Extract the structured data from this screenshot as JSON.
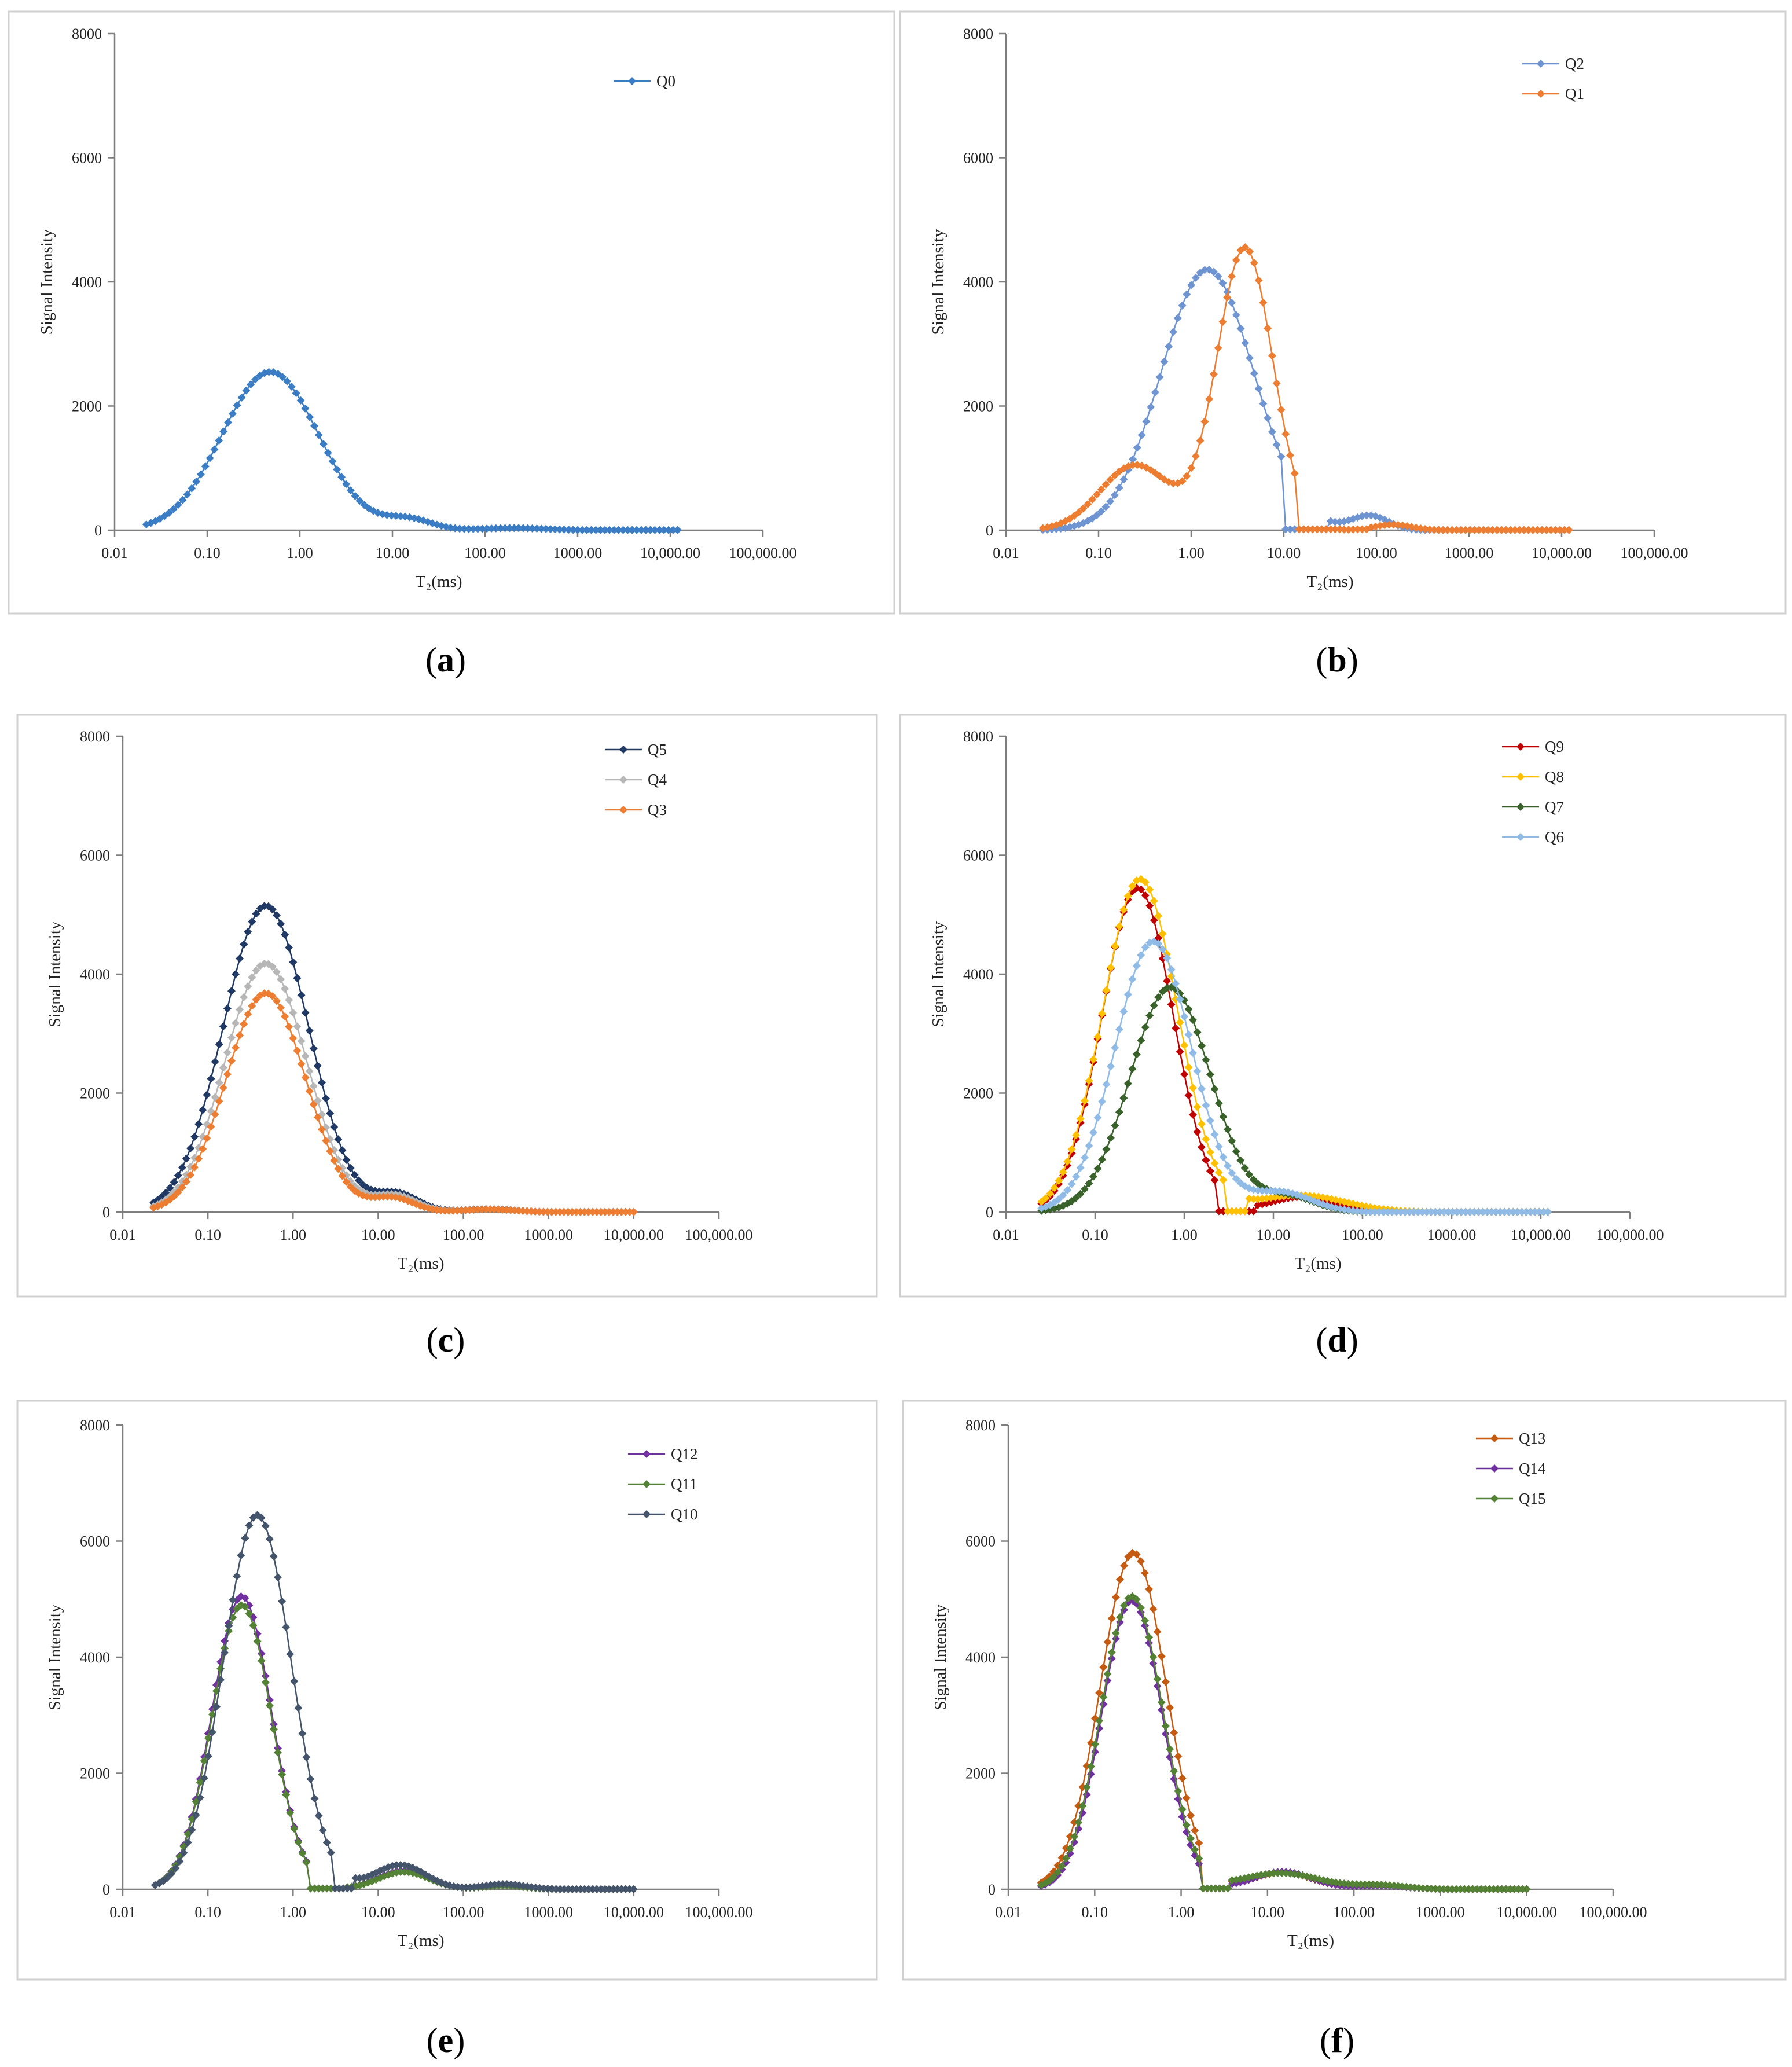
{
  "chart_data": [
    {
      "type": "line",
      "panel": "a",
      "caption_letter": "a",
      "title": "",
      "xlabel": "T₂(ms)",
      "ylabel": "Signal Intensity",
      "xscale": "log",
      "xlim": [
        0.01,
        100000
      ],
      "ylim": [
        0,
        8000
      ],
      "x_tick_labels": [
        "0.01",
        "0.10",
        "1.00",
        "10.00",
        "100.00",
        "1000.00",
        "10,000.00",
        "100,000.00"
      ],
      "y_tick_labels": [
        "0",
        "2000",
        "4000",
        "6000",
        "8000"
      ],
      "legend_position": "top-right",
      "series": [
        {
          "name": "Q0",
          "color": "#3b7dc4",
          "peaks": [
            {
              "mu": 0.48,
              "sd": 0.52,
              "amp": 2550
            },
            {
              "mu": 15,
              "sd": 0.25,
              "amp": 170
            },
            {
              "mu": 200,
              "sd": 0.35,
              "amp": 35
            }
          ],
          "x_range": [
            0.022,
            12000
          ]
        }
      ]
    },
    {
      "type": "line",
      "panel": "b",
      "caption_letter": "b",
      "title": "",
      "xlabel": "T₂(ms)",
      "ylabel": "Signal Intensity",
      "xscale": "log",
      "xlim": [
        0.01,
        100000
      ],
      "ylim": [
        0,
        8000
      ],
      "x_tick_labels": [
        "0.01",
        "0.10",
        "1.00",
        "10.00",
        "100.00",
        "1000.00",
        "10,000.00",
        "100,000.00"
      ],
      "y_tick_labels": [
        "0",
        "2000",
        "4000",
        "6000",
        "8000"
      ],
      "legend_position": "top-right",
      "series": [
        {
          "name": "Q2",
          "color": "#6f94d2",
          "peaks": [
            {
              "mu": 1.5,
              "sd": 0.5,
              "amp": 4200
            },
            {
              "mu": 85,
              "sd": 0.2,
              "amp": 230
            }
          ],
          "cut_ranges": [
            [
              9.5,
              30
            ]
          ],
          "x_range": [
            0.025,
            12000
          ]
        },
        {
          "name": "Q1",
          "color": "#ed7d31",
          "peaks": [
            {
              "mu": 3.8,
              "sd": 0.3,
              "amp": 4550
            },
            {
              "mu": 0.25,
              "sd": 0.38,
              "amp": 1050
            },
            {
              "mu": 150,
              "sd": 0.2,
              "amp": 90
            }
          ],
          "cut_ranges": [
            [
              14,
              80
            ]
          ],
          "x_range": [
            0.025,
            12000
          ]
        }
      ]
    },
    {
      "type": "line",
      "panel": "c",
      "caption_letter": "c",
      "title": "",
      "xlabel": "T₂(ms)",
      "ylabel": "Signal Intensity",
      "xscale": "log",
      "xlim": [
        0.01,
        100000
      ],
      "ylim": [
        0,
        8000
      ],
      "x_tick_labels": [
        "0.01",
        "0.10",
        "1.00",
        "10.00",
        "100.00",
        "1000.00",
        "10,000.00",
        "100,000.00"
      ],
      "y_tick_labels": [
        "0",
        "2000",
        "4000",
        "6000",
        "8000"
      ],
      "legend_position": "top-right",
      "series": [
        {
          "name": "Q5",
          "color": "#1f3864",
          "peaks": [
            {
              "mu": 0.48,
              "sd": 0.5,
              "amp": 5150
            },
            {
              "mu": 17,
              "sd": 0.25,
              "amp": 290
            },
            {
              "mu": 200,
              "sd": 0.3,
              "amp": 50
            }
          ],
          "x_range": [
            0.023,
            10000
          ]
        },
        {
          "name": "Q4",
          "color": "#b7b7b7",
          "peaks": [
            {
              "mu": 0.48,
              "sd": 0.48,
              "amp": 4180
            },
            {
              "mu": 16,
              "sd": 0.25,
              "amp": 270
            },
            {
              "mu": 200,
              "sd": 0.3,
              "amp": 45
            }
          ],
          "x_range": [
            0.023,
            10000
          ]
        },
        {
          "name": "Q3",
          "color": "#ed7d31",
          "peaks": [
            {
              "mu": 0.48,
              "sd": 0.47,
              "amp": 3680
            },
            {
              "mu": 15,
              "sd": 0.25,
              "amp": 230
            },
            {
              "mu": 200,
              "sd": 0.3,
              "amp": 45
            }
          ],
          "x_range": [
            0.023,
            10000
          ]
        }
      ]
    },
    {
      "type": "line",
      "panel": "d",
      "caption_letter": "d",
      "title": "",
      "xlabel": "T₂(ms)",
      "ylabel": "Signal Intensity",
      "xscale": "log",
      "xlim": [
        0.01,
        100000
      ],
      "ylim": [
        0,
        8000
      ],
      "x_tick_labels": [
        "0.01",
        "0.10",
        "1.00",
        "10.00",
        "100.00",
        "1000.00",
        "10,000.00",
        "100,000.00"
      ],
      "y_tick_labels": [
        "0",
        "2000",
        "4000",
        "6000",
        "8000"
      ],
      "legend_position": "top-right",
      "series": [
        {
          "name": "Q9",
          "color": "#c00000",
          "peaks": [
            {
              "mu": 0.3,
              "sd": 0.4,
              "amp": 5450
            },
            {
              "mu": 20,
              "sd": 0.35,
              "amp": 250
            }
          ],
          "cut_ranges": [
            [
              2.2,
              6
            ]
          ],
          "x_range": [
            0.025,
            12000
          ]
        },
        {
          "name": "Q8",
          "color": "#ffc000",
          "peaks": [
            {
              "mu": 0.32,
              "sd": 0.42,
              "amp": 5600
            },
            {
              "mu": 20,
              "sd": 0.5,
              "amp": 280
            }
          ],
          "cut_ranges": [
            [
              2.9,
              5
            ]
          ],
          "x_range": [
            0.025,
            12000
          ]
        },
        {
          "name": "Q7",
          "color": "#38622a",
          "peaks": [
            {
              "mu": 0.7,
              "sd": 0.45,
              "amp": 3780
            },
            {
              "mu": 15,
              "sd": 0.3,
              "amp": 250
            }
          ],
          "x_range": [
            0.025,
            12000
          ]
        },
        {
          "name": "Q6",
          "color": "#8fbbe6",
          "peaks": [
            {
              "mu": 0.45,
              "sd": 0.43,
              "amp": 4550
            },
            {
              "mu": 12,
              "sd": 0.35,
              "amp": 330
            }
          ],
          "x_range": [
            0.025,
            12000
          ]
        }
      ]
    },
    {
      "type": "line",
      "panel": "e",
      "caption_letter": "e",
      "title": "",
      "xlabel": "T₂(ms)",
      "ylabel": "Signal Intensity",
      "xscale": "log",
      "xlim": [
        0.01,
        100000
      ],
      "ylim": [
        0,
        8000
      ],
      "x_tick_labels": [
        "0.01",
        "0.10",
        "1.00",
        "10.00",
        "100.00",
        "1000.00",
        "10,000.00",
        "100,000.00"
      ],
      "y_tick_labels": [
        "0",
        "2000",
        "4000",
        "6000",
        "8000"
      ],
      "legend_position": "top-right",
      "series": [
        {
          "name": "Q12",
          "color": "#7030a0",
          "peaks": [
            {
              "mu": 0.25,
              "sd": 0.35,
              "amp": 5050
            },
            {
              "mu": 20,
              "sd": 0.3,
              "amp": 320
            },
            {
              "mu": 300,
              "sd": 0.25,
              "amp": 60
            }
          ],
          "cut_ranges": [
            [
              1.6,
              4
            ]
          ],
          "x_range": [
            0.024,
            10000
          ]
        },
        {
          "name": "Q11",
          "color": "#548235",
          "peaks": [
            {
              "mu": 0.25,
              "sd": 0.35,
              "amp": 4900
            },
            {
              "mu": 20,
              "sd": 0.3,
              "amp": 300
            },
            {
              "mu": 300,
              "sd": 0.25,
              "amp": 60
            }
          ],
          "cut_ranges": [
            [
              1.6,
              4
            ]
          ],
          "x_range": [
            0.024,
            10000
          ]
        },
        {
          "name": "Q10",
          "color": "#44546a",
          "peaks": [
            {
              "mu": 0.38,
              "sd": 0.4,
              "amp": 6450
            },
            {
              "mu": 18,
              "sd": 0.3,
              "amp": 420
            },
            {
              "mu": 300,
              "sd": 0.25,
              "amp": 90
            }
          ],
          "cut_ranges": [
            [
              3,
              5
            ]
          ],
          "x_range": [
            0.024,
            10000
          ]
        }
      ]
    },
    {
      "type": "line",
      "panel": "f",
      "caption_letter": "f",
      "title": "",
      "xlabel": "T₂(ms)",
      "ylabel": "Signal Intensity",
      "xscale": "log",
      "xlim": [
        0.01,
        100000
      ],
      "ylim": [
        0,
        8000
      ],
      "x_tick_labels": [
        "0.01",
        "0.10",
        "1.00",
        "10.00",
        "100.00",
        "1000.00",
        "10,000.00",
        "100,000.00"
      ],
      "y_tick_labels": [
        "0",
        "2000",
        "4000",
        "6000",
        "8000"
      ],
      "legend_position": "top-right",
      "series": [
        {
          "name": "Q13",
          "color": "#c55a11",
          "peaks": [
            {
              "mu": 0.28,
              "sd": 0.38,
              "amp": 5800
            },
            {
              "mu": 15,
              "sd": 0.35,
              "amp": 290
            },
            {
              "mu": 200,
              "sd": 0.3,
              "amp": 70
            }
          ],
          "cut_ranges": [
            [
              1.7,
              3.5
            ]
          ],
          "x_range": [
            0.024,
            10000
          ]
        },
        {
          "name": "Q14",
          "color": "#7030a0",
          "peaks": [
            {
              "mu": 0.27,
              "sd": 0.35,
              "amp": 4980
            },
            {
              "mu": 15,
              "sd": 0.35,
              "amp": 300
            },
            {
              "mu": 200,
              "sd": 0.3,
              "amp": 60
            }
          ],
          "cut_ranges": [
            [
              1.7,
              3.5
            ]
          ],
          "x_range": [
            0.024,
            10000
          ]
        },
        {
          "name": "Q15",
          "color": "#548235",
          "peaks": [
            {
              "mu": 0.27,
              "sd": 0.36,
              "amp": 5050
            },
            {
              "mu": 14,
              "sd": 0.45,
              "amp": 280
            },
            {
              "mu": 200,
              "sd": 0.3,
              "amp": 70
            }
          ],
          "cut_ranges": [
            [
              1.7,
              3.5
            ]
          ],
          "x_range": [
            0.024,
            10000
          ]
        }
      ]
    }
  ]
}
